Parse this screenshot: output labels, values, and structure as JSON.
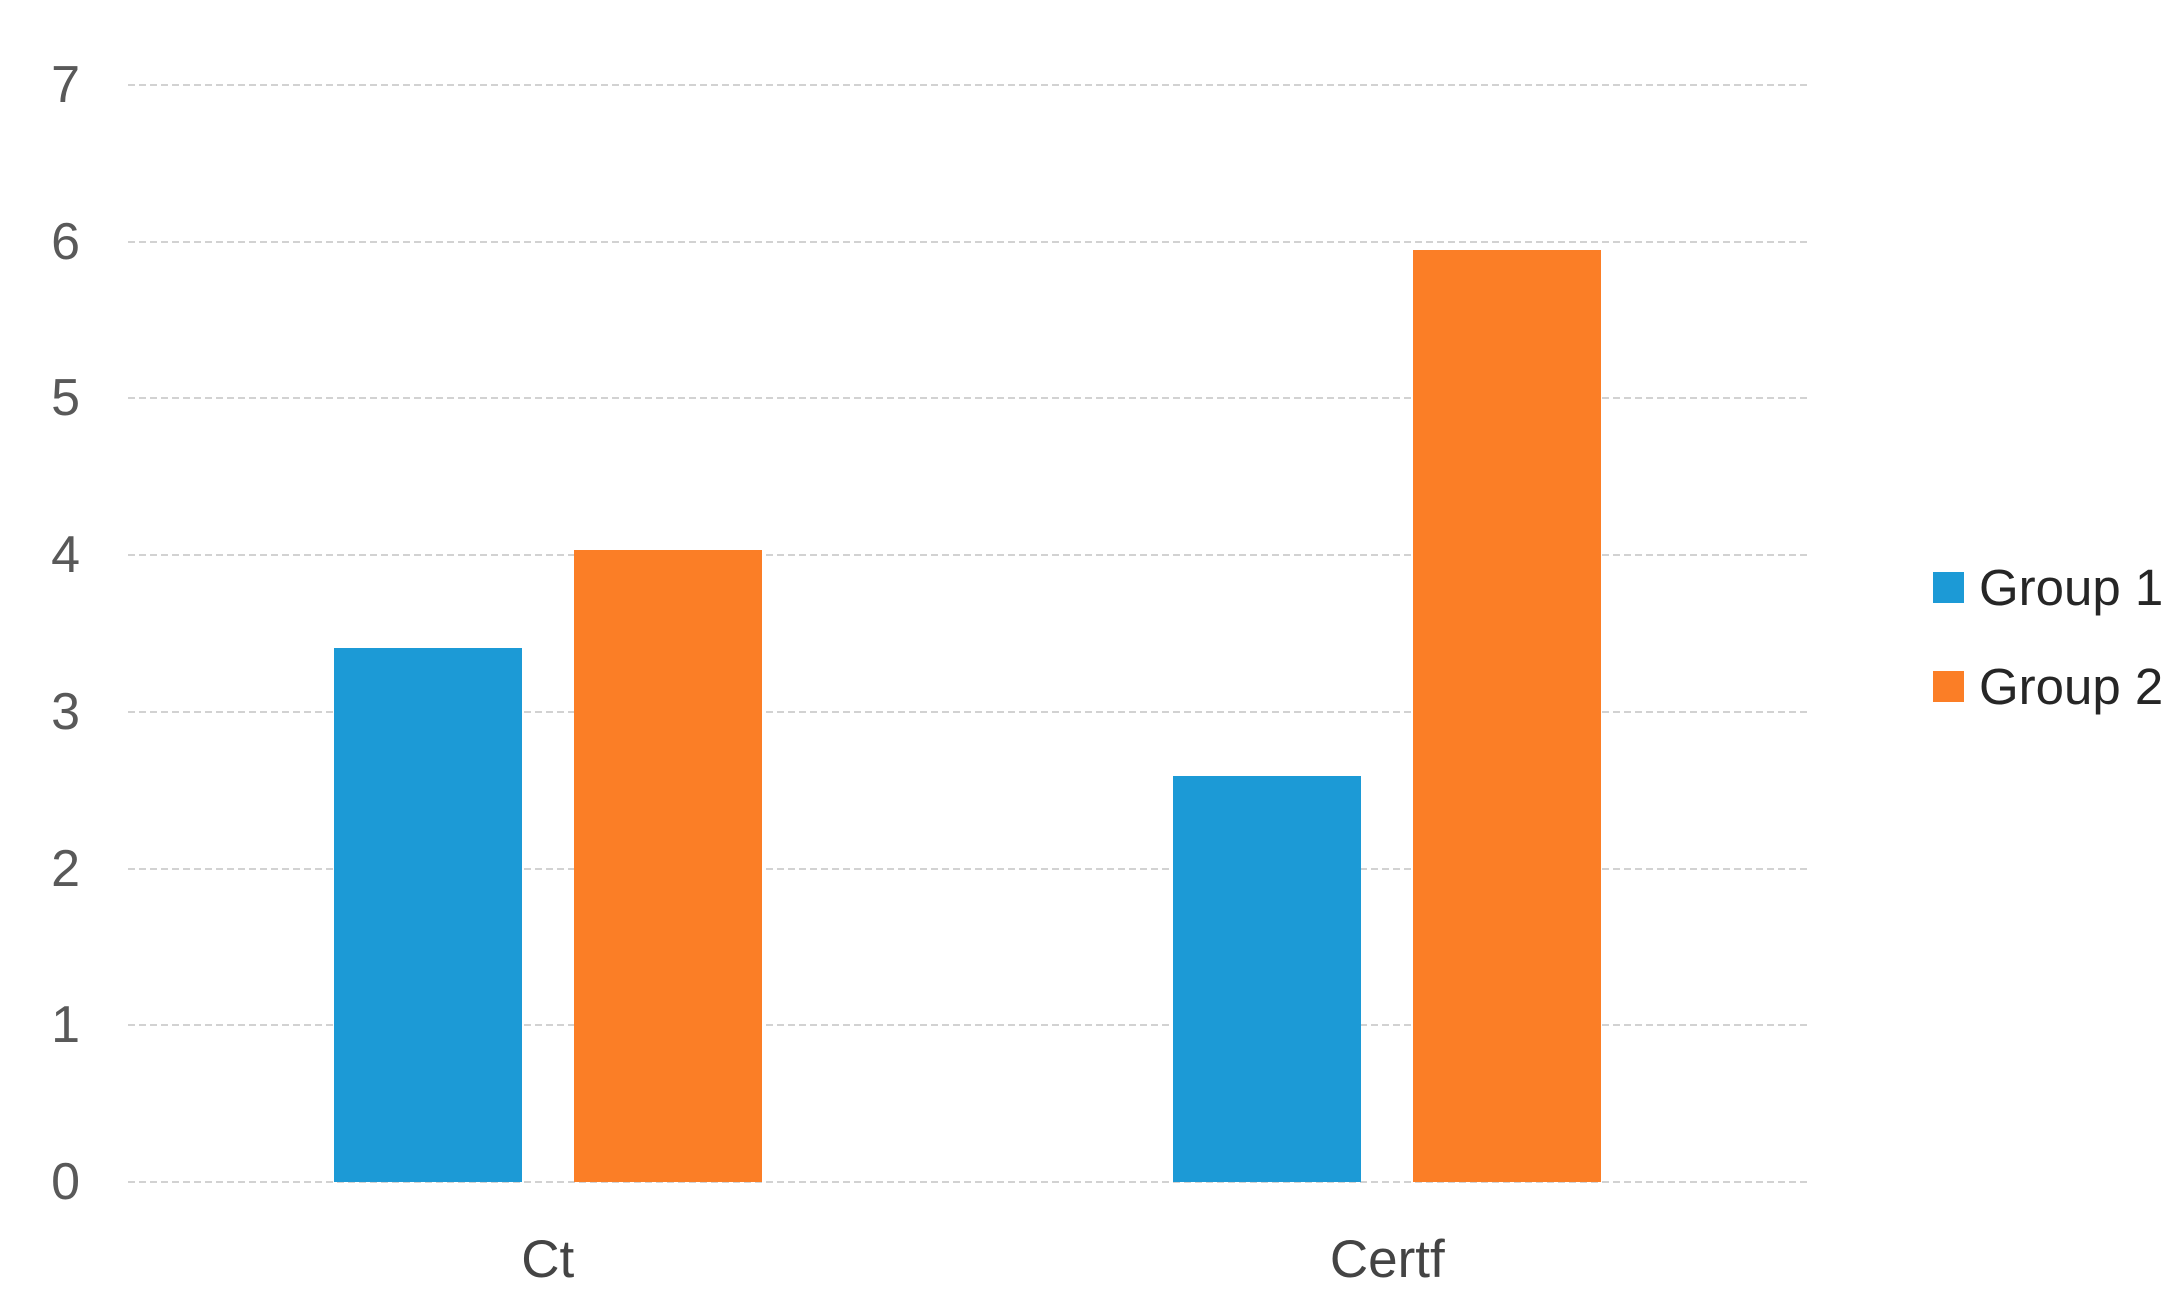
{
  "chart_data": {
    "type": "bar",
    "categories": [
      "Ct",
      "Certf"
    ],
    "series": [
      {
        "name": "Group 1",
        "color": "#1c9ad6",
        "values": [
          3.41,
          2.59
        ]
      },
      {
        "name": "Group 2",
        "color": "#fb7e26",
        "values": [
          4.03,
          5.95
        ]
      }
    ],
    "yticks": [
      0,
      1,
      2,
      3,
      4,
      5,
      6,
      7
    ],
    "ylim": [
      0,
      7
    ],
    "xlabel": "",
    "ylabel": "",
    "grid": true,
    "legend_position": "right",
    "colors": {
      "background": "#ffffff",
      "grid": "#d2d2d2",
      "tick_label": "#595959",
      "category_label": "#444444",
      "legend_label": "#262626"
    }
  }
}
